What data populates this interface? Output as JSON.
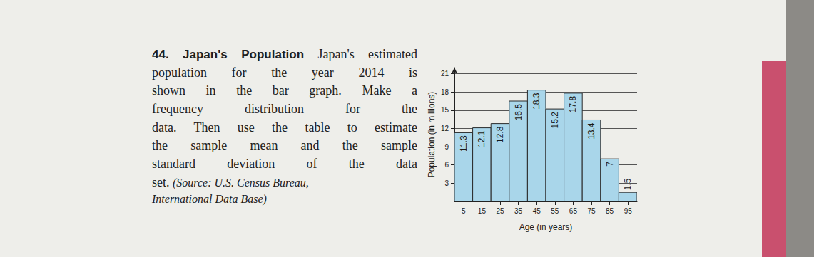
{
  "document": {
    "number": "44.",
    "heading": "Japan's Population",
    "text_lines": [
      "Japan's estimated",
      "population for the year 2014 is",
      "shown in the bar graph. Make a",
      "frequency distribution for the",
      "data. Then use the table to estimate",
      "the sample mean and the sample",
      "standard deviation of the data"
    ],
    "last_line": "set.",
    "source_lines": [
      "(Source: U.S. Census Bureau,",
      "International Data Base)"
    ]
  },
  "chart_data": {
    "type": "histogram",
    "x_label": "Age (in years)",
    "y_label": "Population (in millions)",
    "bins": [
      0,
      10,
      20,
      30,
      40,
      50,
      60,
      70,
      80,
      90,
      100
    ],
    "values": [
      11.3,
      12.1,
      12.8,
      16.5,
      18.3,
      15.2,
      17.8,
      13.4,
      7,
      1.5
    ],
    "color": "#a9d6ea",
    "xlim": [
      0,
      100
    ],
    "xticks": [
      5,
      15,
      25,
      35,
      45,
      55,
      65,
      75,
      85,
      95
    ],
    "ylim": [
      0,
      22
    ],
    "yticks": [
      3,
      6,
      9,
      12,
      15,
      18,
      21
    ],
    "grid": true,
    "data_labels": true
  }
}
